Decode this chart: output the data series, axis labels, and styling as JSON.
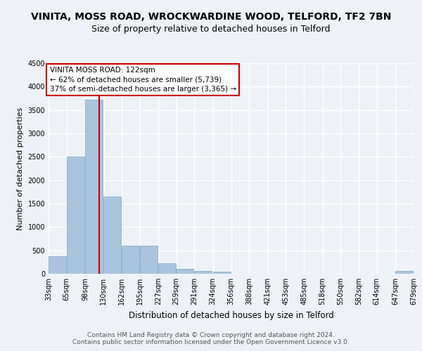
{
  "title": "VINITA, MOSS ROAD, WROCKWARDINE WOOD, TELFORD, TF2 7BN",
  "subtitle": "Size of property relative to detached houses in Telford",
  "xlabel": "Distribution of detached houses by size in Telford",
  "ylabel": "Number of detached properties",
  "bins": [
    33,
    65,
    98,
    130,
    162,
    195,
    227,
    259,
    291,
    324,
    356,
    388,
    421,
    453,
    485,
    518,
    550,
    582,
    614,
    647,
    679
  ],
  "bar_heights": [
    375,
    2500,
    3725,
    1650,
    600,
    600,
    225,
    110,
    60,
    50,
    5,
    0,
    0,
    0,
    0,
    0,
    0,
    0,
    0,
    60
  ],
  "bar_color": "#aac4de",
  "bar_edge_color": "#7aaabf",
  "vline_x": 122,
  "vline_color": "#cc0000",
  "annotation_text": "VINITA MOSS ROAD: 122sqm\n← 62% of detached houses are smaller (5,739)\n37% of semi-detached houses are larger (3,365) →",
  "annotation_box_color": "#cc0000",
  "ylim": [
    0,
    4500
  ],
  "yticks": [
    0,
    500,
    1000,
    1500,
    2000,
    2500,
    3000,
    3500,
    4000,
    4500
  ],
  "tick_labels": [
    "33sqm",
    "65sqm",
    "98sqm",
    "130sqm",
    "162sqm",
    "195sqm",
    "227sqm",
    "259sqm",
    "291sqm",
    "324sqm",
    "356sqm",
    "388sqm",
    "421sqm",
    "453sqm",
    "485sqm",
    "518sqm",
    "550sqm",
    "582sqm",
    "614sqm",
    "647sqm",
    "679sqm"
  ],
  "footer": "Contains HM Land Registry data © Crown copyright and database right 2024.\nContains public sector information licensed under the Open Government Licence v3.0.",
  "bg_color": "#eef2f7",
  "grid_color": "#ffffff",
  "title_fontsize": 10,
  "subtitle_fontsize": 9,
  "axis_label_fontsize": 8.5,
  "tick_fontsize": 7,
  "ylabel_fontsize": 8
}
